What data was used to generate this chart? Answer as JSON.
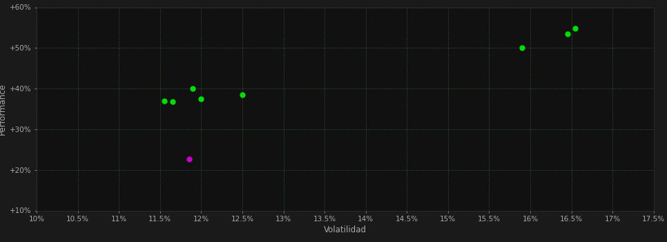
{
  "xlabel": "Volatilidad",
  "ylabel": "Performance",
  "bg_color": "#1a1a1a",
  "plot_bg_color": "#111111",
  "grid_color": "#3a5a3a",
  "text_color": "#aaaaaa",
  "xlim": [
    0.1,
    0.175
  ],
  "ylim": [
    0.1,
    0.6
  ],
  "xticks": [
    0.1,
    0.105,
    0.11,
    0.115,
    0.12,
    0.125,
    0.13,
    0.135,
    0.14,
    0.145,
    0.15,
    0.155,
    0.16,
    0.165,
    0.17,
    0.175
  ],
  "yticks": [
    0.1,
    0.2,
    0.3,
    0.4,
    0.5,
    0.6
  ],
  "xtick_labels": [
    "10%",
    "10.5%",
    "11%",
    "11.5%",
    "12%",
    "12.5%",
    "13%",
    "13.5%",
    "14%",
    "14.5%",
    "15%",
    "15.5%",
    "16%",
    "16.5%",
    "17%",
    "17.5%"
  ],
  "ytick_labels": [
    "+10%",
    "+20%",
    "+30%",
    "+40%",
    "+50%",
    "+60%"
  ],
  "green_points": [
    [
      0.1155,
      0.37
    ],
    [
      0.1165,
      0.368
    ],
    [
      0.119,
      0.4
    ],
    [
      0.12,
      0.375
    ],
    [
      0.125,
      0.385
    ],
    [
      0.159,
      0.5
    ],
    [
      0.1645,
      0.535
    ],
    [
      0.1655,
      0.548
    ]
  ],
  "magenta_points": [
    [
      0.1185,
      0.226
    ]
  ],
  "point_size": 25,
  "green_color": "#00dd00",
  "magenta_color": "#cc00cc"
}
